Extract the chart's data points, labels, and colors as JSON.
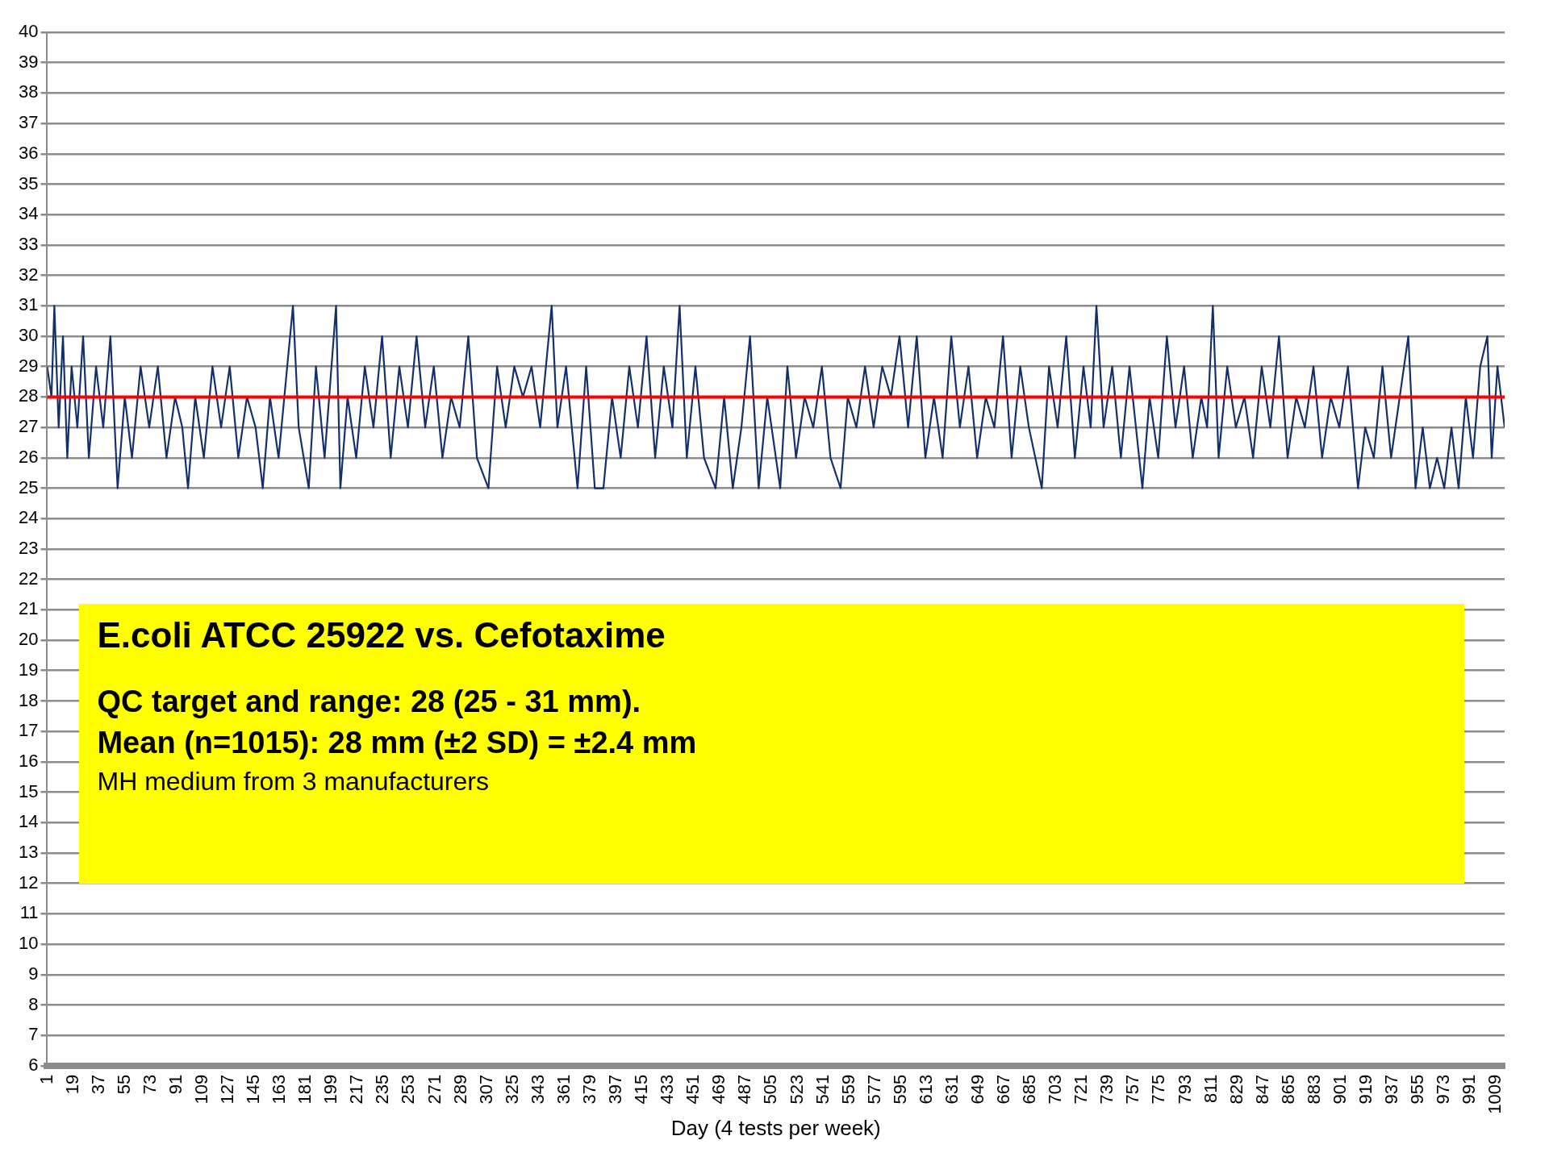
{
  "chart_data": {
    "type": "line",
    "xlabel": "Day (4 tests per week)",
    "xlim": [
      1,
      1015
    ],
    "xticks": [
      1,
      19,
      37,
      55,
      73,
      91,
      109,
      127,
      145,
      163,
      181,
      199,
      217,
      235,
      253,
      271,
      289,
      307,
      325,
      343,
      361,
      379,
      397,
      415,
      433,
      451,
      469,
      487,
      505,
      523,
      541,
      559,
      577,
      595,
      613,
      631,
      649,
      667,
      685,
      703,
      721,
      739,
      757,
      775,
      793,
      811,
      829,
      847,
      865,
      883,
      901,
      919,
      937,
      955,
      973,
      991,
      1009
    ],
    "ylim": [
      6,
      40
    ],
    "yticks": [
      6,
      7,
      8,
      9,
      10,
      11,
      12,
      13,
      14,
      15,
      16,
      17,
      18,
      19,
      20,
      21,
      22,
      23,
      24,
      25,
      26,
      27,
      28,
      29,
      30,
      31,
      32,
      33,
      34,
      35,
      36,
      37,
      38,
      39,
      40
    ],
    "grid": "y",
    "legend": false,
    "marker": "none",
    "line_style": "solid",
    "ref_lines": [
      {
        "axis": "y",
        "value": 28,
        "color": "#ff0000"
      }
    ],
    "annotations": [
      "E.coli ATCC 25922 vs. Cefotaxime",
      "QC target and range: 28 (25 - 31 mm).",
      "Mean (n=1015): 28 mm (±2 SD) = ±2.4 mm",
      "MH medium from 3 manufacturers"
    ],
    "series": [
      {
        "color": "#13306e",
        "x": [
          1,
          4,
          6,
          9,
          12,
          15,
          18,
          22,
          26,
          30,
          35,
          40,
          45,
          50,
          55,
          60,
          66,
          72,
          78,
          84,
          90,
          95,
          99,
          104,
          110,
          116,
          122,
          128,
          134,
          140,
          146,
          151,
          156,
          162,
          168,
          172,
          176,
          183,
          188,
          194,
          202,
          205,
          210,
          216,
          222,
          228,
          234,
          240,
          246,
          252,
          258,
          264,
          270,
          276,
          282,
          288,
          294,
          300,
          308,
          314,
          320,
          326,
          332,
          338,
          344,
          352,
          356,
          362,
          370,
          376,
          382,
          388,
          394,
          400,
          406,
          412,
          418,
          424,
          430,
          436,
          441,
          446,
          452,
          458,
          466,
          472,
          478,
          484,
          490,
          496,
          502,
          511,
          516,
          522,
          528,
          534,
          540,
          546,
          553,
          558,
          564,
          570,
          576,
          582,
          588,
          594,
          600,
          606,
          612,
          618,
          624,
          630,
          636,
          642,
          648,
          654,
          660,
          666,
          672,
          678,
          684,
          693,
          698,
          704,
          710,
          716,
          722,
          727,
          731,
          736,
          742,
          748,
          754,
          763,
          768,
          774,
          780,
          786,
          792,
          798,
          804,
          808,
          812,
          816,
          822,
          828,
          834,
          840,
          846,
          852,
          858,
          864,
          870,
          876,
          882,
          888,
          894,
          900,
          906,
          913,
          918,
          924,
          930,
          936,
          942,
          948,
          953,
          958,
          963,
          968,
          973,
          978,
          983,
          988,
          993,
          998,
          1003,
          1006,
          1010,
          1015
        ],
        "values": [
          29,
          28,
          31,
          27,
          30,
          26,
          29,
          27,
          30,
          26,
          29,
          27,
          30,
          25,
          28,
          26,
          29,
          27,
          29,
          26,
          28,
          27,
          25,
          28,
          26,
          29,
          27,
          29,
          26,
          28,
          27,
          25,
          28,
          26,
          29,
          31,
          27,
          25,
          29,
          26,
          31,
          25,
          28,
          26,
          29,
          27,
          30,
          26,
          29,
          27,
          30,
          27,
          29,
          26,
          28,
          27,
          30,
          26,
          25,
          29,
          27,
          29,
          28,
          29,
          27,
          31,
          27,
          29,
          25,
          29,
          25,
          25,
          28,
          26,
          29,
          27,
          30,
          26,
          29,
          27,
          31,
          26,
          29,
          26,
          25,
          28,
          25,
          27,
          30,
          25,
          28,
          25,
          29,
          26,
          28,
          27,
          29,
          26,
          25,
          28,
          27,
          29,
          27,
          29,
          28,
          30,
          27,
          30,
          26,
          28,
          26,
          30,
          27,
          29,
          26,
          28,
          27,
          30,
          26,
          29,
          27,
          25,
          29,
          27,
          30,
          26,
          29,
          27,
          31,
          27,
          29,
          26,
          29,
          25,
          28,
          26,
          30,
          27,
          29,
          26,
          28,
          27,
          31,
          26,
          29,
          27,
          28,
          26,
          29,
          27,
          30,
          26,
          28,
          27,
          29,
          26,
          28,
          27,
          29,
          25,
          27,
          26,
          29,
          26,
          28,
          30,
          25,
          27,
          25,
          26,
          25,
          27,
          25,
          28,
          26,
          29,
          30,
          26,
          29,
          27
        ]
      }
    ]
  }
}
